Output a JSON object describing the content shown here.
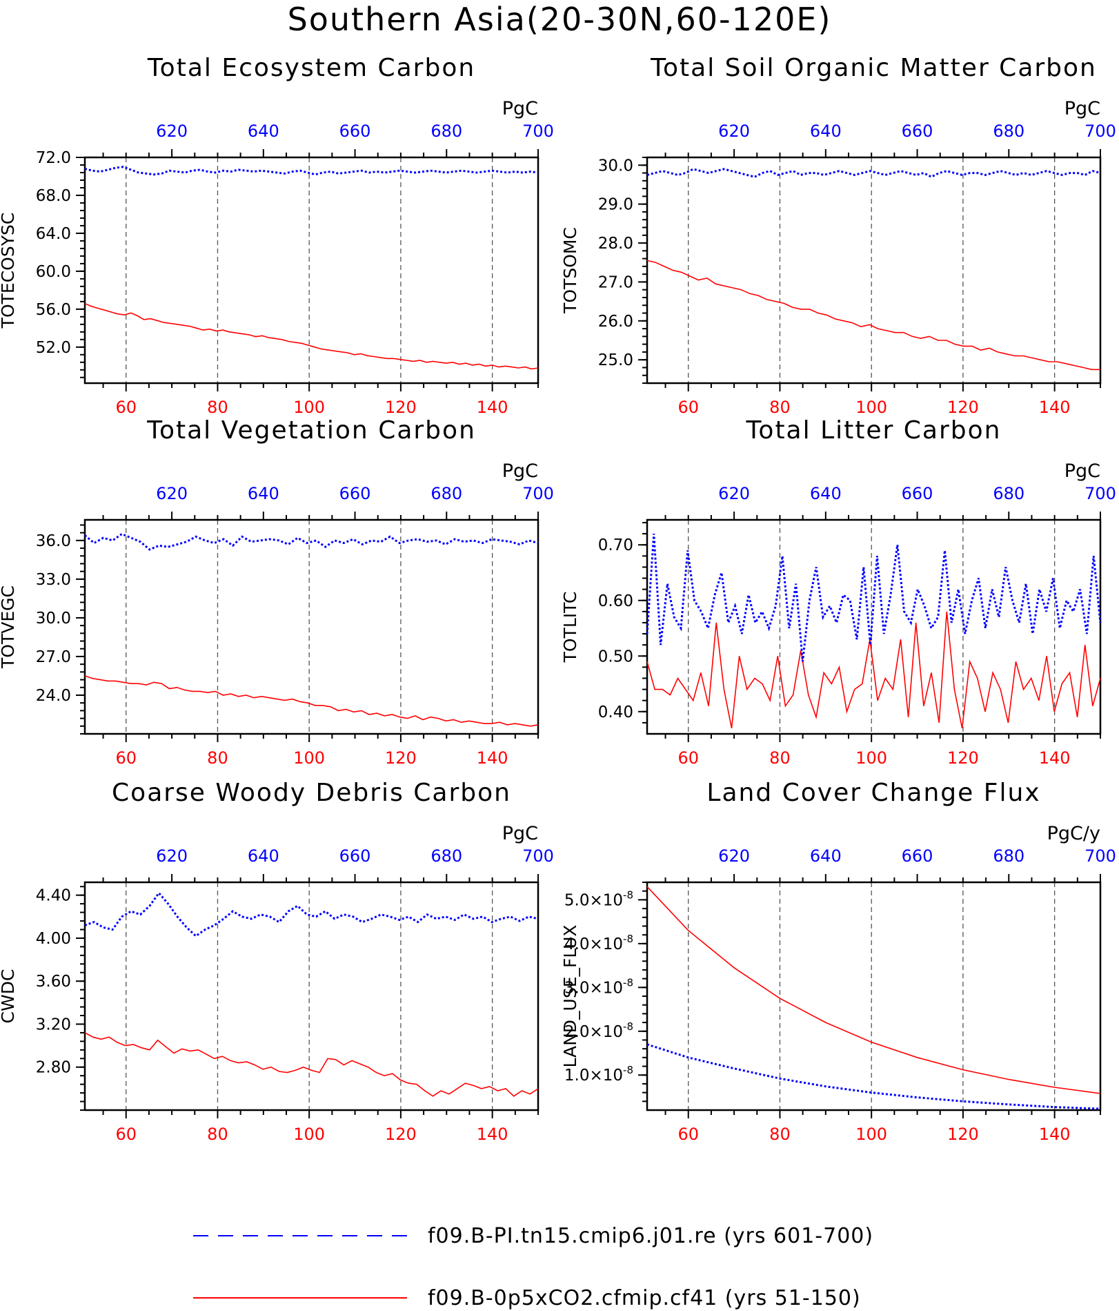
{
  "figure": {
    "title": "Southern Asia(20-30N,60-120E)"
  },
  "colors": {
    "red": "#ff0000",
    "blue": "#0000ff",
    "black": "#000000"
  },
  "legend": {
    "entries": [
      {
        "label": "f09.B-PI.tn15.cmip6.j01.re (yrs 601-700)",
        "color": "#0000ff",
        "style": "dashed"
      },
      {
        "label": "f09.B-0p5xCO2.cfmip.cf41 (yrs 51-150)",
        "color": "#ff0000",
        "style": "solid"
      }
    ]
  },
  "chart_data": [
    {
      "id": "totecosysc",
      "type": "line",
      "title": "Total Ecosystem Carbon",
      "ylabel": "TOTECOSYSC",
      "units": "PgC",
      "xlim": [
        51,
        150
      ],
      "x_ticks": [
        "60",
        "80",
        "100",
        "120",
        "140"
      ],
      "x2lim": [
        601,
        700
      ],
      "x2_ticks": [
        "620",
        "640",
        "660",
        "680",
        "700"
      ],
      "ylim": [
        48.2,
        72.0
      ],
      "y_ticks": [
        "72.0",
        "68.0",
        "64.0",
        "60.0",
        "56.0",
        "52.0"
      ],
      "grid": "vertical-dashed",
      "series": [
        {
          "axis": "bottom",
          "color": "#ff0000",
          "style": "solid",
          "values": [
            56.6,
            56.3,
            56.1,
            55.9,
            55.7,
            55.5,
            55.4,
            55.6,
            55.3,
            54.9,
            55.0,
            54.8,
            54.6,
            54.5,
            54.4,
            54.3,
            54.2,
            54.0,
            53.8,
            53.9,
            53.7,
            53.8,
            53.6,
            53.5,
            53.4,
            53.3,
            53.1,
            53.2,
            53.0,
            52.9,
            52.8,
            52.6,
            52.5,
            52.4,
            52.2,
            52.0,
            51.8,
            51.7,
            51.6,
            51.5,
            51.4,
            51.2,
            51.3,
            51.1,
            51.0,
            50.9,
            50.8,
            50.8,
            50.7,
            50.6,
            50.5,
            50.6,
            50.4,
            50.5,
            50.4,
            50.3,
            50.4,
            50.2,
            50.3,
            50.1,
            50.2,
            50.0,
            50.1,
            49.9,
            50.0,
            49.9,
            49.8,
            49.9,
            49.7,
            49.8
          ]
        },
        {
          "axis": "top",
          "color": "#0000ff",
          "style": "dotted",
          "values": [
            70.8,
            70.6,
            70.5,
            70.7,
            70.9,
            71.0,
            70.7,
            70.4,
            70.3,
            70.2,
            70.3,
            70.6,
            70.5,
            70.4,
            70.6,
            70.7,
            70.5,
            70.4,
            70.6,
            70.5,
            70.7,
            70.6,
            70.5,
            70.6,
            70.5,
            70.4,
            70.3,
            70.5,
            70.6,
            70.4,
            70.2,
            70.4,
            70.5,
            70.3,
            70.4,
            70.5,
            70.6,
            70.4,
            70.5,
            70.4,
            70.5,
            70.6,
            70.5,
            70.4,
            70.5,
            70.6,
            70.5,
            70.4,
            70.5,
            70.6,
            70.5,
            70.4,
            70.5,
            70.6,
            70.5,
            70.4,
            70.5,
            70.4,
            70.5,
            70.4
          ]
        }
      ]
    },
    {
      "id": "totsomc",
      "type": "line",
      "title": "Total Soil Organic Matter Carbon",
      "ylabel": "TOTSOMC",
      "units": "PgC",
      "xlim": [
        51,
        150
      ],
      "x_ticks": [
        "60",
        "80",
        "100",
        "120",
        "140"
      ],
      "x2lim": [
        601,
        700
      ],
      "x2_ticks": [
        "620",
        "640",
        "660",
        "680",
        "700"
      ],
      "ylim": [
        24.4,
        30.2
      ],
      "y_ticks": [
        "30.0",
        "29.0",
        "28.0",
        "27.0",
        "26.0",
        "25.0"
      ],
      "grid": "vertical-dashed",
      "series": [
        {
          "axis": "bottom",
          "color": "#ff0000",
          "style": "solid",
          "values": [
            27.55,
            27.5,
            27.4,
            27.3,
            27.25,
            27.15,
            27.05,
            27.1,
            26.95,
            26.9,
            26.85,
            26.8,
            26.7,
            26.65,
            26.55,
            26.5,
            26.45,
            26.35,
            26.3,
            26.3,
            26.2,
            26.15,
            26.05,
            26.0,
            25.95,
            25.85,
            25.9,
            25.8,
            25.75,
            25.7,
            25.7,
            25.6,
            25.55,
            25.6,
            25.5,
            25.5,
            25.4,
            25.35,
            25.35,
            25.25,
            25.3,
            25.2,
            25.15,
            25.1,
            25.1,
            25.05,
            25.0,
            24.95,
            24.95,
            24.9,
            24.85,
            24.8,
            24.75,
            24.75
          ]
        },
        {
          "axis": "top",
          "color": "#0000ff",
          "style": "dotted",
          "values": [
            29.75,
            29.8,
            29.85,
            29.8,
            29.75,
            29.8,
            29.9,
            29.85,
            29.8,
            29.85,
            29.9,
            29.85,
            29.8,
            29.75,
            29.7,
            29.8,
            29.85,
            29.75,
            29.8,
            29.85,
            29.75,
            29.8,
            29.8,
            29.75,
            29.8,
            29.85,
            29.8,
            29.75,
            29.8,
            29.85,
            29.8,
            29.75,
            29.8,
            29.85,
            29.8,
            29.75,
            29.8,
            29.7,
            29.8,
            29.85,
            29.8,
            29.75,
            29.8,
            29.8,
            29.75,
            29.8,
            29.85,
            29.8,
            29.75,
            29.8,
            29.75,
            29.8,
            29.85,
            29.8,
            29.75,
            29.8,
            29.8,
            29.75,
            29.85,
            29.8
          ]
        }
      ]
    },
    {
      "id": "totvegc",
      "type": "line",
      "title": "Total Vegetation Carbon",
      "ylabel": "TOTVEGC",
      "units": "PgC",
      "xlim": [
        51,
        150
      ],
      "x_ticks": [
        "60",
        "80",
        "100",
        "120",
        "140"
      ],
      "x2lim": [
        601,
        700
      ],
      "x2_ticks": [
        "620",
        "640",
        "660",
        "680",
        "700"
      ],
      "ylim": [
        21.0,
        37.6
      ],
      "y_ticks": [
        "36.0",
        "33.0",
        "30.0",
        "27.0",
        "24.0"
      ],
      "grid": "vertical-dashed",
      "series": [
        {
          "axis": "bottom",
          "color": "#ff0000",
          "style": "solid",
          "values": [
            25.5,
            25.3,
            25.2,
            25.1,
            25.1,
            25.0,
            24.9,
            24.9,
            24.8,
            25.0,
            24.9,
            24.5,
            24.6,
            24.4,
            24.3,
            24.3,
            24.2,
            24.3,
            24.0,
            24.1,
            23.9,
            24.0,
            23.8,
            23.9,
            23.8,
            23.7,
            23.6,
            23.7,
            23.5,
            23.4,
            23.2,
            23.2,
            23.1,
            22.8,
            22.9,
            22.7,
            22.8,
            22.5,
            22.6,
            22.4,
            22.5,
            22.3,
            22.2,
            22.4,
            22.1,
            22.3,
            22.2,
            22.0,
            22.1,
            21.9,
            22.0,
            21.9,
            21.8,
            21.8,
            21.9,
            21.7,
            21.8,
            21.7,
            21.6,
            21.7
          ]
        },
        {
          "axis": "top",
          "color": "#0000ff",
          "style": "dotted",
          "values": [
            36.4,
            35.8,
            36.2,
            36.0,
            36.5,
            36.2,
            35.9,
            35.3,
            35.6,
            35.5,
            35.7,
            35.9,
            36.3,
            36.0,
            35.8,
            36.1,
            35.6,
            36.3,
            35.9,
            36.0,
            36.1,
            36.0,
            35.7,
            36.2,
            35.8,
            36.0,
            35.5,
            36.0,
            35.8,
            36.1,
            35.7,
            36.0,
            35.9,
            36.3,
            35.8,
            36.0,
            36.1,
            35.9,
            36.0,
            35.7,
            36.1,
            35.9,
            36.0,
            35.8,
            36.1,
            36.0,
            35.9,
            35.7,
            36.0,
            35.8
          ]
        }
      ]
    },
    {
      "id": "totlitc",
      "type": "line",
      "title": "Total Litter Carbon",
      "ylabel": "TOTLITC",
      "units": "PgC",
      "xlim": [
        51,
        150
      ],
      "x_ticks": [
        "60",
        "80",
        "100",
        "120",
        "140"
      ],
      "x2lim": [
        601,
        700
      ],
      "x2_ticks": [
        "620",
        "640",
        "660",
        "680",
        "700"
      ],
      "ylim": [
        0.36,
        0.745
      ],
      "y_ticks": [
        "0.70",
        "0.60",
        "0.50",
        "0.40"
      ],
      "grid": "vertical-dashed",
      "series": [
        {
          "axis": "bottom",
          "color": "#ff0000",
          "style": "solid",
          "values": [
            0.49,
            0.44,
            0.44,
            0.43,
            0.46,
            0.44,
            0.42,
            0.47,
            0.41,
            0.56,
            0.44,
            0.37,
            0.5,
            0.44,
            0.46,
            0.45,
            0.42,
            0.5,
            0.41,
            0.43,
            0.51,
            0.43,
            0.39,
            0.47,
            0.45,
            0.48,
            0.4,
            0.44,
            0.45,
            0.53,
            0.42,
            0.46,
            0.44,
            0.53,
            0.39,
            0.56,
            0.41,
            0.47,
            0.38,
            0.58,
            0.44,
            0.37,
            0.49,
            0.46,
            0.4,
            0.47,
            0.44,
            0.38,
            0.49,
            0.44,
            0.46,
            0.42,
            0.5,
            0.4,
            0.45,
            0.47,
            0.39,
            0.52,
            0.41,
            0.46
          ]
        },
        {
          "axis": "top",
          "color": "#0000ff",
          "style": "dotted",
          "values": [
            0.54,
            0.72,
            0.52,
            0.63,
            0.57,
            0.55,
            0.69,
            0.6,
            0.58,
            0.55,
            0.61,
            0.65,
            0.56,
            0.59,
            0.54,
            0.61,
            0.56,
            0.58,
            0.55,
            0.59,
            0.68,
            0.55,
            0.63,
            0.49,
            0.6,
            0.66,
            0.57,
            0.59,
            0.56,
            0.61,
            0.6,
            0.53,
            0.66,
            0.52,
            0.68,
            0.54,
            0.61,
            0.7,
            0.58,
            0.56,
            0.62,
            0.59,
            0.55,
            0.57,
            0.69,
            0.56,
            0.62,
            0.54,
            0.6,
            0.64,
            0.55,
            0.62,
            0.57,
            0.66,
            0.6,
            0.56,
            0.63,
            0.54,
            0.62,
            0.58,
            0.64,
            0.55,
            0.6,
            0.58,
            0.62,
            0.54,
            0.68,
            0.56
          ]
        }
      ]
    },
    {
      "id": "cwdc",
      "type": "line",
      "title": "Coarse Woody Debris Carbon",
      "ylabel": "CWDC",
      "units": "PgC",
      "xlim": [
        51,
        150
      ],
      "x_ticks": [
        "60",
        "80",
        "100",
        "120",
        "140"
      ],
      "x2lim": [
        601,
        700
      ],
      "x2_ticks": [
        "620",
        "640",
        "660",
        "680",
        "700"
      ],
      "ylim": [
        2.4,
        4.52
      ],
      "y_ticks": [
        "4.40",
        "4.00",
        "3.60",
        "3.20",
        "2.80"
      ],
      "grid": "vertical-dashed",
      "series": [
        {
          "axis": "bottom",
          "color": "#ff0000",
          "style": "solid",
          "values": [
            3.12,
            3.08,
            3.06,
            3.08,
            3.03,
            3.0,
            3.01,
            2.98,
            2.96,
            3.05,
            2.99,
            2.93,
            2.97,
            2.95,
            2.96,
            2.92,
            2.88,
            2.9,
            2.86,
            2.84,
            2.85,
            2.82,
            2.78,
            2.8,
            2.76,
            2.75,
            2.77,
            2.8,
            2.77,
            2.75,
            2.88,
            2.87,
            2.82,
            2.86,
            2.83,
            2.8,
            2.75,
            2.72,
            2.74,
            2.68,
            2.65,
            2.64,
            2.58,
            2.53,
            2.58,
            2.55,
            2.6,
            2.65,
            2.63,
            2.6,
            2.62,
            2.58,
            2.6,
            2.53,
            2.58,
            2.55,
            2.6
          ]
        },
        {
          "axis": "top",
          "color": "#0000ff",
          "style": "dotted",
          "values": [
            4.12,
            4.15,
            4.1,
            4.08,
            4.2,
            4.25,
            4.22,
            4.3,
            4.42,
            4.32,
            4.2,
            4.1,
            4.02,
            4.08,
            4.12,
            4.18,
            4.25,
            4.2,
            4.18,
            4.22,
            4.2,
            4.15,
            4.25,
            4.3,
            4.22,
            4.2,
            4.25,
            4.18,
            4.22,
            4.2,
            4.15,
            4.18,
            4.22,
            4.2,
            4.17,
            4.2,
            4.15,
            4.22,
            4.18,
            4.2,
            4.17,
            4.22,
            4.18,
            4.2,
            4.15,
            4.18,
            4.2,
            4.16,
            4.2,
            4.18
          ]
        }
      ]
    },
    {
      "id": "land_use_flux",
      "type": "line",
      "title": "Land Cover Change Flux",
      "ylabel": "LAND_USE_FLUX",
      "units": "PgC/y",
      "xlim": [
        51,
        150
      ],
      "x_ticks": [
        "60",
        "80",
        "100",
        "120",
        "140"
      ],
      "x2lim": [
        601,
        700
      ],
      "x2_ticks": [
        "620",
        "640",
        "660",
        "680",
        "700"
      ],
      "ylim": [
        2e-09,
        5.4e-08
      ],
      "y_ticks": [
        {
          "value": 5e-08,
          "mantissa": "5.0",
          "exp": "-8"
        },
        {
          "value": 4e-08,
          "mantissa": "4.0",
          "exp": "-8"
        },
        {
          "value": 3e-08,
          "mantissa": "3.0",
          "exp": "-8"
        },
        {
          "value": 2e-08,
          "mantissa": "2.0",
          "exp": "-8"
        },
        {
          "value": 1e-08,
          "mantissa": "1.0",
          "exp": "-8"
        }
      ],
      "grid": "vertical-dashed",
      "series": [
        {
          "axis": "bottom",
          "color": "#ff0000",
          "style": "solid",
          "x": [
            51,
            60,
            70,
            80,
            90,
            100,
            110,
            120,
            130,
            140,
            150
          ],
          "values": [
            5.3e-08,
            4.3e-08,
            3.45e-08,
            2.75e-08,
            2.2e-08,
            1.75e-08,
            1.4e-08,
            1.12e-08,
            9e-09,
            7.2e-09,
            5.8e-09
          ]
        },
        {
          "axis": "bottom",
          "color": "#0000ff",
          "style": "dotted",
          "x": [
            51,
            60,
            70,
            80,
            90,
            100,
            110,
            120,
            130,
            140,
            150
          ],
          "values": [
            1.7e-08,
            1.4e-08,
            1.15e-08,
            9.2e-09,
            7.4e-09,
            6e-09,
            4.9e-09,
            4e-09,
            3.3e-09,
            2.7e-09,
            2.3e-09
          ]
        }
      ]
    }
  ]
}
